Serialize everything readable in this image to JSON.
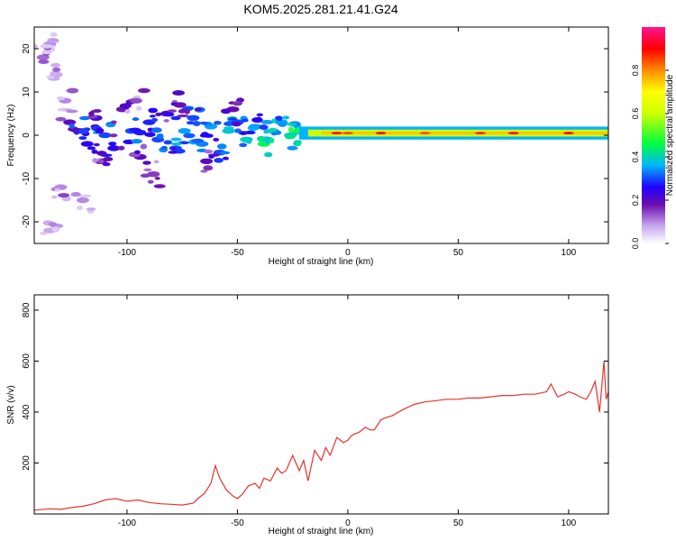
{
  "title": "KOM5.2025.281.21.41.G24",
  "colors": {
    "snr_line": "#e8322b",
    "axis": "#000000",
    "colorbar": [
      "#6a0dad",
      "#2200ff",
      "#00b4ff",
      "#00ff40",
      "#ffff00",
      "#ff8c00",
      "#ff0000",
      "#ff1493"
    ]
  },
  "chart_data": [
    {
      "type": "heatmap",
      "xlabel": "Height of straight line (km)",
      "ylabel": "Frequency (Hz)",
      "xlim": [
        -142,
        118
      ],
      "ylim": [
        -25,
        25
      ],
      "xticks": [
        -100,
        -50,
        0,
        50,
        100
      ],
      "xtick_labels": [
        "-100",
        "-50",
        "0",
        "50",
        "100"
      ],
      "yticks": [
        -20,
        -10,
        0,
        10,
        20
      ],
      "ytick_labels": [
        "-20",
        "-10",
        "0",
        "10",
        "20"
      ],
      "colorbar": {
        "label": "Normalized spectral amplitude",
        "range": [
          0,
          1
        ],
        "ticks": [
          "0.0",
          "0.2",
          "0.4",
          "0.6",
          "0.8"
        ]
      },
      "ridge": {
        "frequency": 0.5,
        "x_start": -22,
        "x_end": 118,
        "amplitude": 0.75
      },
      "blobs": [
        [
          -138,
          18,
          0.12
        ],
        [
          -135,
          21,
          0.1
        ],
        [
          -132,
          14,
          0.08
        ],
        [
          -128,
          8,
          0.1
        ],
        [
          -126,
          3,
          0.2
        ],
        [
          -122,
          1,
          0.28
        ],
        [
          -118,
          -2,
          0.25
        ],
        [
          -114,
          4,
          0.22
        ],
        [
          -110,
          0,
          0.3
        ],
        [
          -106,
          -3,
          0.25
        ],
        [
          -102,
          6,
          0.2
        ],
        [
          -98,
          1,
          0.3
        ],
        [
          -94,
          -5,
          0.2
        ],
        [
          -90,
          3,
          0.28
        ],
        [
          -86,
          -1,
          0.3
        ],
        [
          -82,
          5,
          0.22
        ],
        [
          -78,
          -3,
          0.3
        ],
        [
          -74,
          1,
          0.35
        ],
        [
          -70,
          4,
          0.3
        ],
        [
          -66,
          -2,
          0.33
        ],
        [
          -62,
          2,
          0.35
        ],
        [
          -58,
          -4,
          0.3
        ],
        [
          -54,
          1,
          0.38
        ],
        [
          -50,
          3,
          0.3
        ],
        [
          -46,
          -1,
          0.4
        ],
        [
          -42,
          2,
          0.35
        ],
        [
          -38,
          -2,
          0.45
        ],
        [
          -34,
          1,
          0.4
        ],
        [
          -30,
          3,
          0.35
        ],
        [
          -26,
          0,
          0.4
        ],
        [
          -22,
          1,
          0.45
        ],
        [
          -130,
          -12,
          0.1
        ],
        [
          -120,
          -15,
          0.1
        ],
        [
          -135,
          -22,
          0.08
        ],
        [
          -112,
          -6,
          0.18
        ],
        [
          -96,
          8,
          0.15
        ],
        [
          -88,
          -9,
          0.15
        ],
        [
          -76,
          7,
          0.18
        ],
        [
          -64,
          -6,
          0.2
        ],
        [
          -52,
          6,
          0.18
        ]
      ]
    },
    {
      "type": "line",
      "xlabel": "Height of straight line (km)",
      "ylabel": "SNR (v/v)",
      "xlim": [
        -142,
        118
      ],
      "ylim": [
        0,
        860
      ],
      "xticks": [
        -100,
        -50,
        0,
        50,
        100
      ],
      "xtick_labels": [
        "-100",
        "-50",
        "0",
        "50",
        "100"
      ],
      "yticks": [
        200,
        400,
        600,
        800
      ],
      "ytick_labels": [
        "200",
        "400",
        "600",
        "800"
      ],
      "series": [
        {
          "x": [
            -142,
            -135,
            -130,
            -125,
            -120,
            -115,
            -110,
            -105,
            -100,
            -95,
            -90,
            -85,
            -80,
            -75,
            -70,
            -68,
            -65,
            -62,
            -60,
            -58,
            -55,
            -52,
            -50,
            -48,
            -45,
            -42,
            -40,
            -38,
            -35,
            -32,
            -30,
            -28,
            -25,
            -22,
            -20,
            -18,
            -15,
            -12,
            -10,
            -8,
            -5,
            -2,
            0,
            2,
            5,
            8,
            10,
            12,
            15,
            18,
            20,
            25,
            30,
            35,
            40,
            45,
            50,
            55,
            60,
            65,
            70,
            75,
            80,
            85,
            90,
            92,
            95,
            98,
            100,
            103,
            105,
            108,
            110,
            112,
            114,
            116,
            117,
            118
          ],
          "y": [
            15,
            20,
            18,
            25,
            30,
            40,
            55,
            60,
            50,
            55,
            45,
            40,
            38,
            35,
            42,
            60,
            80,
            120,
            190,
            140,
            95,
            70,
            60,
            75,
            110,
            120,
            100,
            140,
            130,
            180,
            160,
            170,
            230,
            170,
            210,
            130,
            250,
            210,
            260,
            230,
            300,
            280,
            290,
            310,
            320,
            340,
            330,
            330,
            370,
            380,
            385,
            410,
            430,
            440,
            445,
            450,
            450,
            455,
            455,
            460,
            465,
            465,
            470,
            470,
            480,
            510,
            460,
            470,
            480,
            470,
            460,
            450,
            480,
            520,
            400,
            600,
            450,
            480
          ]
        }
      ]
    }
  ]
}
